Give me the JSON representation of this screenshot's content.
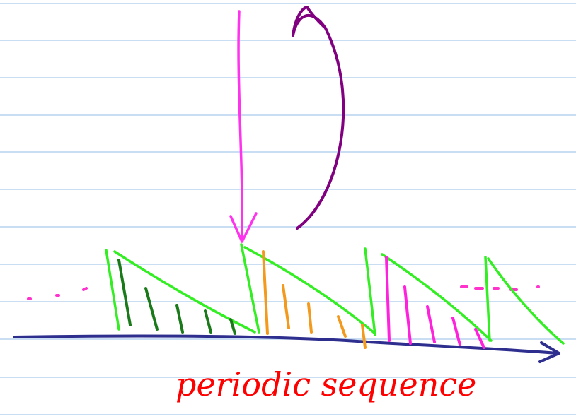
{
  "note": {
    "text": "periodic sequence"
  }
}
